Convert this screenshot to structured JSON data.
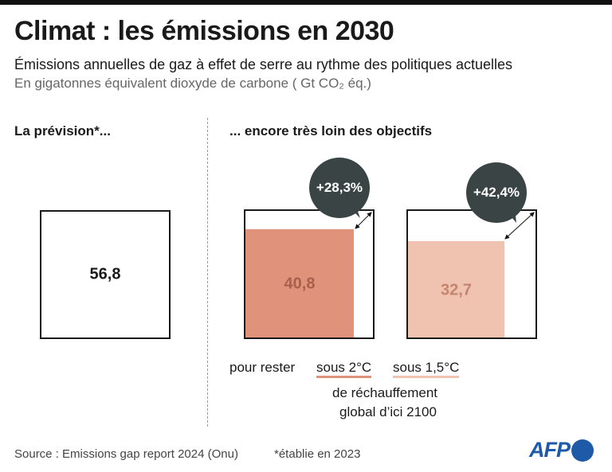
{
  "title": "Climat : les émissions en 2030",
  "subtitle": "Émissions annuelles de gaz à effet de serre au rythme des politiques actuelles",
  "unit": "En gigatonnes équivalent dioxyde de carbone ( Gt CO₂ éq.)",
  "left_heading": "La prévision*...",
  "right_heading": "... encore très loin des objectifs",
  "forecast": {
    "value": 56.8,
    "label": "56,8"
  },
  "targets": [
    {
      "value": 40.8,
      "label": "40,8",
      "gap": "+28,3%",
      "color": "#e0937a",
      "text_color": "#a8604c",
      "scenario": "sous 2°C"
    },
    {
      "value": 32.7,
      "label": "32,7",
      "gap": "+42,4%",
      "color": "#f0c2b0",
      "text_color": "#c48470",
      "scenario": "sous 1,5°C"
    }
  ],
  "caption_prefix": "pour rester",
  "caption_line1": "de réchauffement",
  "caption_line2": "global d’ici 2100",
  "source": "Source : Emissions gap report 2024 (Onu)",
  "footnote": "*établie en 2023",
  "logo": "AFP",
  "colors": {
    "bubble": "#3b4444",
    "logo": "#1f5aa8"
  }
}
